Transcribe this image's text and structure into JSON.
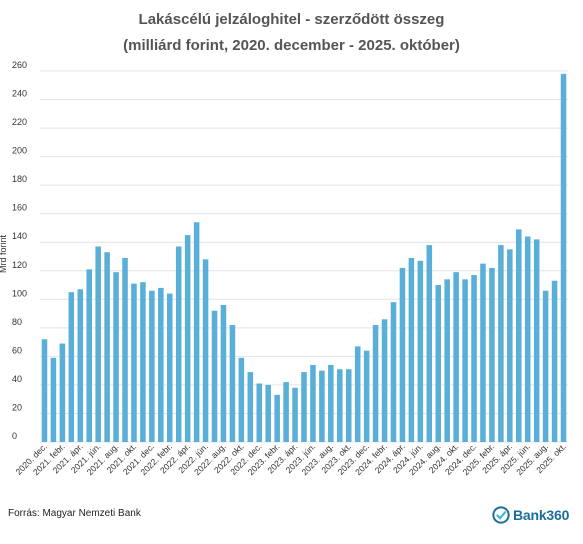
{
  "chart_data": {
    "type": "bar",
    "title": "Lakáscélú jelzáloghitel - szerződött összeg",
    "subtitle": "(milliárd forint, 2020. december - 2025. október)",
    "ylabel": "Mrd forint",
    "xlabel": "",
    "ylim": [
      0,
      260
    ],
    "yticks": [
      0,
      20,
      40,
      60,
      80,
      100,
      120,
      140,
      160,
      180,
      200,
      220,
      240,
      260
    ],
    "grid": true,
    "bar_color": "#5aafd9",
    "categories": [
      "2020. dec.",
      "2021. jan.",
      "2021. febr.",
      "2021. márc.",
      "2021. ápr.",
      "2021. máj.",
      "2021. jún.",
      "2021. júl.",
      "2021. aug.",
      "2021. szept.",
      "2021. okt.",
      "2021. nov.",
      "2021. dec.",
      "2022. jan.",
      "2022. febr.",
      "2022. márc.",
      "2022. ápr.",
      "2022. máj.",
      "2022. jún.",
      "2022. júl.",
      "2022. aug.",
      "2022. szept.",
      "2022. okt.",
      "2022. nov.",
      "2022. dec.",
      "2023. jan.",
      "2023. febr.",
      "2023. márc.",
      "2023. ápr.",
      "2023. máj.",
      "2023. jún.",
      "2023. júl.",
      "2023. aug.",
      "2023. szept.",
      "2023. okt.",
      "2023. nov.",
      "2023. dec.",
      "2024. jan.",
      "2024. febr.",
      "2024. márc.",
      "2024. ápr.",
      "2024. máj.",
      "2024. jún.",
      "2024. júl.",
      "2024. aug.",
      "2024. szept.",
      "2024. okt.",
      "2024. nov.",
      "2024. dec.",
      "2025. jan.",
      "2025. febr.",
      "2025. márc.",
      "2025. ápr.",
      "2025. máj.",
      "2025. jún.",
      "2025. júl.",
      "2025. aug.",
      "2025. szept.",
      "2025. okt."
    ],
    "visible_tick_labels": [
      "2020. dec.",
      "2021. febr.",
      "2021. ápr.",
      "2021. jún.",
      "2021. aug.",
      "2021. okt.",
      "2021. dec.",
      "2022. febr.",
      "2022. ápr.",
      "2022. jún.",
      "2022. aug.",
      "2022. okt.",
      "2022. dec.",
      "2023. febr.",
      "2023. ápr.",
      "2023. jún.",
      "2023. aug.",
      "2023. okt.",
      "2023. dec.",
      "2024. febr.",
      "2024. ápr.",
      "2024. jún.",
      "2024. aug.",
      "2024. okt.",
      "2024. dec.",
      "2025. febr.",
      "2025. ápr.",
      "2025. jún.",
      "2025. aug.",
      "2025. okt."
    ],
    "values": [
      72,
      59,
      69,
      105,
      107,
      121,
      137,
      133,
      119,
      129,
      111,
      112,
      106,
      108,
      104,
      137,
      145,
      154,
      128,
      92,
      96,
      82,
      59,
      49,
      41,
      40,
      33,
      42,
      38,
      49,
      54,
      50,
      54,
      51,
      51,
      67,
      64,
      82,
      86,
      98,
      122,
      129,
      127,
      138,
      110,
      114,
      119,
      114,
      117,
      125,
      122,
      138,
      135,
      149,
      144,
      142,
      106,
      113,
      258
    ]
  },
  "footer": {
    "source": "Forrás: Magyar Nemzeti Bank",
    "logo_text": "Bank360"
  }
}
